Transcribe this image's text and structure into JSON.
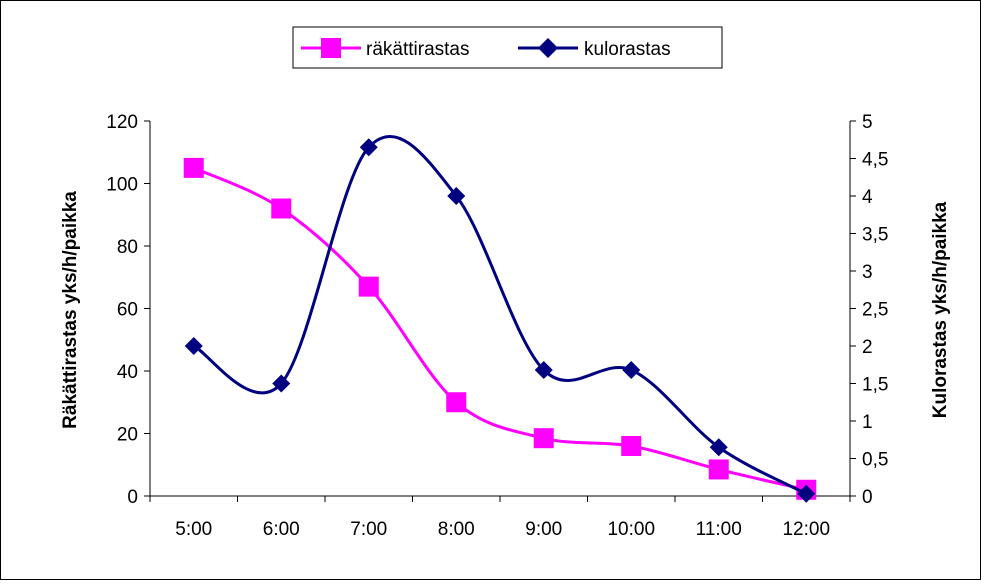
{
  "chart_data": {
    "type": "line",
    "title": "",
    "categories": [
      "5:00",
      "6:00",
      "7:00",
      "8:00",
      "9:00",
      "10:00",
      "11:00",
      "12:00"
    ],
    "y_left": {
      "label": "Räkättirastas yks/h/paikka",
      "range": [
        0,
        120
      ],
      "ticks": [
        0,
        20,
        40,
        60,
        80,
        100,
        120
      ],
      "tick_labels": [
        "0",
        "20",
        "40",
        "60",
        "80",
        "100",
        "120"
      ]
    },
    "y_right": {
      "label": "Kulorastas yks/h/paikka",
      "range": [
        0,
        5
      ],
      "ticks": [
        0,
        0.5,
        1,
        1.5,
        2,
        2.5,
        3,
        3.5,
        4,
        4.5,
        5
      ],
      "tick_labels": [
        "0",
        "0,5",
        "1",
        "1,5",
        "2",
        "2,5",
        "3",
        "3,5",
        "4",
        "4,5",
        "5"
      ]
    },
    "series": [
      {
        "name": "räkättirastas",
        "axis": "left",
        "color": "#ff00ff",
        "marker": "square",
        "smooth": true,
        "values": [
          105,
          92,
          67,
          30,
          18.5,
          16,
          8.5,
          2
        ]
      },
      {
        "name": "kulorastas",
        "axis": "right",
        "color": "#000080",
        "marker": "diamond",
        "smooth": true,
        "values": [
          2.0,
          1.5,
          4.65,
          4.0,
          1.68,
          1.68,
          0.65,
          0.03
        ]
      }
    ],
    "legend_position": "top-center",
    "grid": false
  }
}
